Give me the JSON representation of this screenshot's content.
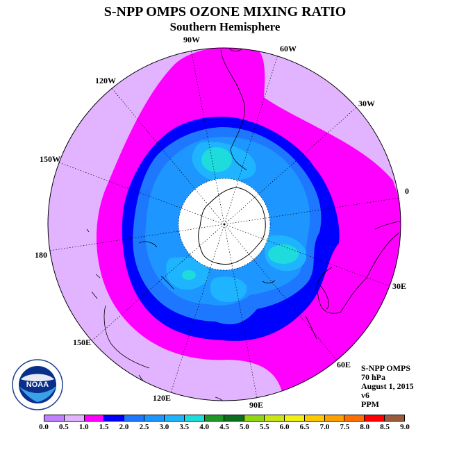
{
  "title": "S-NPP OMPS OZONE MIXING RATIO",
  "subtitle": "Southern Hemisphere",
  "longitude_labels": [
    "90W",
    "60W",
    "30W",
    "0",
    "30E",
    "60E",
    "90E",
    "120E",
    "150E",
    "180",
    "150W",
    "120W"
  ],
  "info": {
    "satellite": "S-NPP OMPS",
    "pressure": "70 hPa",
    "date": "August 1, 2015",
    "version": "v6",
    "units": "PPM"
  },
  "logo": {
    "icon": "noaa-logo-icon",
    "text": "NOAA"
  },
  "colorbar": {
    "ticks": [
      "0.0",
      "0.5",
      "1.0",
      "1.5",
      "2.0",
      "2.5",
      "3.0",
      "3.5",
      "4.0",
      "4.5",
      "5.0",
      "5.5",
      "6.0",
      "6.5",
      "7.0",
      "7.5",
      "8.0",
      "8.5",
      "9.0"
    ],
    "colors": [
      "#c080ff",
      "#e2b4ff",
      "#ff00ff",
      "#0000ff",
      "#1e78ff",
      "#1e96ff",
      "#1eb4ff",
      "#1edcdc",
      "#1e9628",
      "#0a6e1e",
      "#90d614",
      "#c8e614",
      "#f0f014",
      "#ffc800",
      "#ffa000",
      "#ff6e00",
      "#ff0000",
      "#9a5a3c"
    ]
  },
  "colors": {
    "purple_light": "#e2b4ff",
    "magenta": "#ff00ff",
    "dark_blue": "#0000ff",
    "mid_blue": "#1e78ff",
    "sky_blue": "#1eb4ff",
    "light_blue": "#1e96ff",
    "cyan": "#1edcdc",
    "pole_white": "#ffffff"
  }
}
